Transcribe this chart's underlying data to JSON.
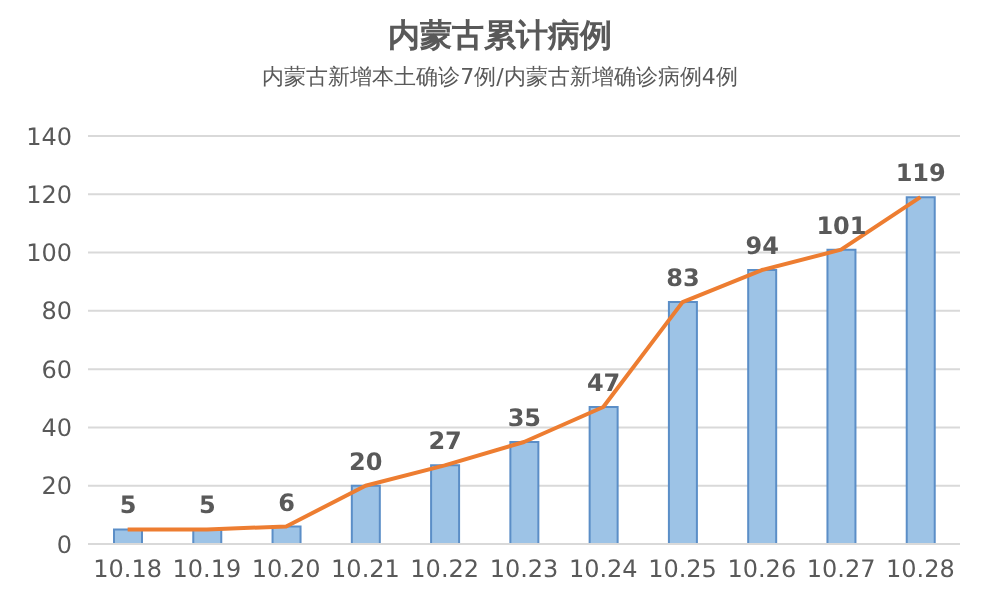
{
  "chart_data": {
    "type": "bar",
    "title": "内蒙古累计病例",
    "subtitle": "内蒙古新增本土确诊7例/内蒙古新增确诊病例4例",
    "categories": [
      "10.18",
      "10.19",
      "10.20",
      "10.21",
      "10.22",
      "10.23",
      "10.24",
      "10.25",
      "10.26",
      "10.27",
      "10.28"
    ],
    "series": [
      {
        "color": "#9dc3e6",
        "values": [
          5,
          5,
          6,
          20,
          27,
          35,
          47,
          83,
          94,
          101,
          119
        ],
        "value_labels": [
          "5",
          "5",
          "6",
          "20",
          "27",
          "35",
          "47",
          "83",
          "94",
          "101",
          "119"
        ]
      },
      {
        "type": "line",
        "color": "#ed7d31",
        "values": [
          5,
          5,
          6,
          20,
          27,
          35,
          47,
          83,
          94,
          101,
          119
        ]
      }
    ],
    "ylim": [
      0,
      140
    ],
    "yticks": [
      0,
      20,
      40,
      60,
      80,
      100,
      120,
      140
    ],
    "grid": "y",
    "legend": false,
    "marker": "none"
  }
}
